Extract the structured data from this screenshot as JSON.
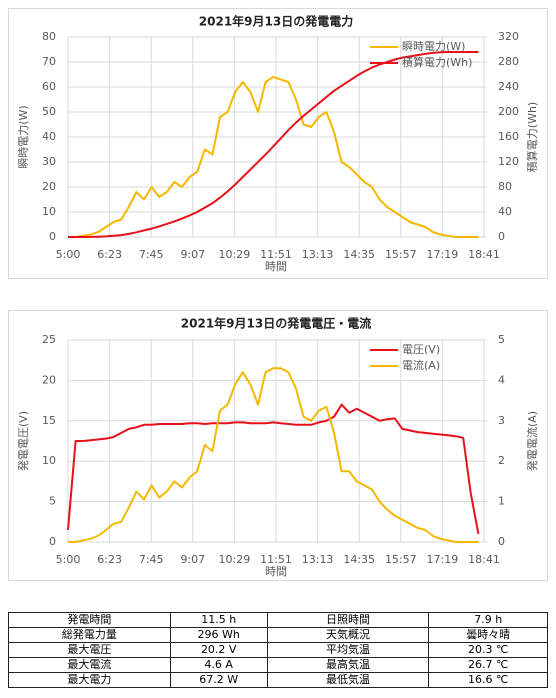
{
  "chart_data": [
    {
      "type": "line",
      "title": "2021年9月13日の発電電力",
      "x_label": "時間",
      "y_label": "瞬時電力(W)",
      "y2_label": "積算電力(Wh)",
      "grid": true,
      "legend": "top-right",
      "xlim": [
        300,
        1121
      ],
      "xticks": [
        {
          "value": 300,
          "label": "5:00"
        },
        {
          "value": 382.1,
          "label": "6:23"
        },
        {
          "value": 464.2,
          "label": "7:45"
        },
        {
          "value": 546.3,
          "label": "9:07"
        },
        {
          "value": 628.4,
          "label": "10:29"
        },
        {
          "value": 710.5,
          "label": "11:51"
        },
        {
          "value": 792.6,
          "label": "13:13"
        },
        {
          "value": 874.7,
          "label": "14:35"
        },
        {
          "value": 956.8,
          "label": "15:57"
        },
        {
          "value": 1038.9,
          "label": "17:19"
        },
        {
          "value": 1121,
          "label": "18:41"
        }
      ],
      "ylim": [
        0,
        80
      ],
      "yticks": [
        0,
        10,
        20,
        30,
        40,
        50,
        60,
        70,
        80
      ],
      "y2lim": [
        0,
        320
      ],
      "y2ticks": [
        0,
        40,
        80,
        120,
        160,
        200,
        240,
        280,
        320
      ],
      "x": [
        300,
        315,
        330,
        345,
        360,
        375,
        390,
        405,
        420,
        435,
        450,
        465,
        480,
        495,
        510,
        525,
        540,
        555,
        570,
        585,
        600,
        615,
        630,
        645,
        660,
        675,
        690,
        705,
        720,
        735,
        750,
        765,
        780,
        795,
        810,
        825,
        840,
        855,
        870,
        885,
        900,
        915,
        930,
        945,
        960,
        975,
        990,
        1005,
        1020,
        1035,
        1050,
        1065,
        1080,
        1095,
        1110
      ],
      "series": [
        {
          "name": "瞬時電力(W)",
          "color": "#f5b800",
          "values": [
            0,
            0,
            0.5,
            1,
            2,
            4,
            6,
            7,
            12,
            18,
            15,
            20,
            16,
            18,
            22,
            20,
            24,
            26,
            35,
            33,
            48,
            50,
            58,
            62,
            58,
            50,
            62,
            64,
            63,
            62,
            55,
            45,
            44,
            48,
            50,
            42,
            30,
            28,
            25,
            22,
            20,
            15,
            12,
            10,
            8,
            6,
            5,
            4,
            2,
            1,
            0.5,
            0,
            0,
            0,
            0
          ]
        },
        {
          "name": "積算電力(Wh)",
          "color": "#e8101a",
          "axis": "y2",
          "values": [
            0,
            0,
            0,
            0.2,
            0.5,
            1,
            2,
            3,
            5,
            7.5,
            10.5,
            13.5,
            17,
            21,
            25,
            29.5,
            34.5,
            40,
            47,
            54,
            63,
            73,
            84,
            96,
            108,
            120,
            132,
            145,
            158,
            171,
            183,
            194,
            204,
            214,
            224,
            234,
            242,
            250,
            258,
            265,
            271,
            276,
            280,
            284,
            287,
            289,
            291,
            293,
            294.5,
            295.5,
            296,
            296,
            296,
            296,
            296
          ]
        }
      ]
    },
    {
      "type": "line",
      "title": "2021年9月13日の発電電圧・電流",
      "x_label": "時間",
      "y_label": "発電電圧(V)",
      "y2_label": "発電電流(A)",
      "grid": true,
      "legend": "top-right",
      "xlim": [
        300,
        1121
      ],
      "xticks": [
        {
          "value": 300,
          "label": "5:00"
        },
        {
          "value": 382.1,
          "label": "6:23"
        },
        {
          "value": 464.2,
          "label": "7:45"
        },
        {
          "value": 546.3,
          "label": "9:07"
        },
        {
          "value": 628.4,
          "label": "10:29"
        },
        {
          "value": 710.5,
          "label": "11:51"
        },
        {
          "value": 792.6,
          "label": "13:13"
        },
        {
          "value": 874.7,
          "label": "14:35"
        },
        {
          "value": 956.8,
          "label": "15:57"
        },
        {
          "value": 1038.9,
          "label": "17:19"
        },
        {
          "value": 1121,
          "label": "18:41"
        }
      ],
      "ylim": [
        0,
        25
      ],
      "yticks": [
        0,
        5,
        10,
        15,
        20,
        25
      ],
      "y2lim": [
        0,
        5
      ],
      "y2ticks": [
        0,
        1,
        2,
        3,
        4,
        5
      ],
      "x": [
        300,
        315,
        330,
        345,
        360,
        375,
        390,
        405,
        420,
        435,
        450,
        465,
        480,
        495,
        510,
        525,
        540,
        555,
        570,
        585,
        600,
        615,
        630,
        645,
        660,
        675,
        690,
        705,
        720,
        735,
        750,
        765,
        780,
        795,
        810,
        825,
        840,
        855,
        870,
        885,
        900,
        915,
        930,
        945,
        960,
        975,
        990,
        1005,
        1020,
        1035,
        1050,
        1065,
        1080,
        1095,
        1110
      ],
      "series": [
        {
          "name": "電圧(V)",
          "color": "#e8101a",
          "values": [
            1.5,
            12.5,
            12.5,
            12.6,
            12.7,
            12.8,
            13,
            13.5,
            14,
            14.2,
            14.5,
            14.5,
            14.6,
            14.6,
            14.6,
            14.6,
            14.7,
            14.7,
            14.6,
            14.7,
            14.7,
            14.7,
            14.8,
            14.8,
            14.7,
            14.7,
            14.7,
            14.8,
            14.7,
            14.6,
            14.5,
            14.5,
            14.5,
            14.8,
            15,
            15.5,
            17,
            16,
            16.5,
            16,
            15.5,
            15,
            15.2,
            15.3,
            14,
            13.8,
            13.6,
            13.5,
            13.4,
            13.3,
            13.2,
            13.1,
            12.9,
            6,
            1
          ]
        },
        {
          "name": "電流(A)",
          "color": "#f5b800",
          "axis": "y2",
          "values": [
            0,
            0,
            0.04,
            0.08,
            0.16,
            0.3,
            0.45,
            0.5,
            0.85,
            1.25,
            1.05,
            1.4,
            1.1,
            1.25,
            1.5,
            1.35,
            1.6,
            1.75,
            2.4,
            2.25,
            3.25,
            3.4,
            3.9,
            4.2,
            3.9,
            3.4,
            4.2,
            4.3,
            4.3,
            4.2,
            3.8,
            3.1,
            3,
            3.25,
            3.35,
            2.7,
            1.75,
            1.75,
            1.5,
            1.4,
            1.3,
            1,
            0.8,
            0.65,
            0.55,
            0.45,
            0.35,
            0.3,
            0.15,
            0.08,
            0.04,
            0,
            0,
            0,
            0
          ]
        }
      ]
    }
  ],
  "table": {
    "rows": [
      [
        "発電時間",
        "11.5 h",
        "日照時間",
        "7.9 h"
      ],
      [
        "総発電力量",
        "296 Wh",
        "天気概況",
        "曇時々晴"
      ],
      [
        "最大電圧",
        "20.2 V",
        "平均気温",
        "20.3 ℃"
      ],
      [
        "最大電流",
        "4.6 A",
        "最高気温",
        "26.7 ℃"
      ],
      [
        "最大電力",
        "67.2 W",
        "最低気温",
        "16.6 ℃"
      ]
    ]
  }
}
